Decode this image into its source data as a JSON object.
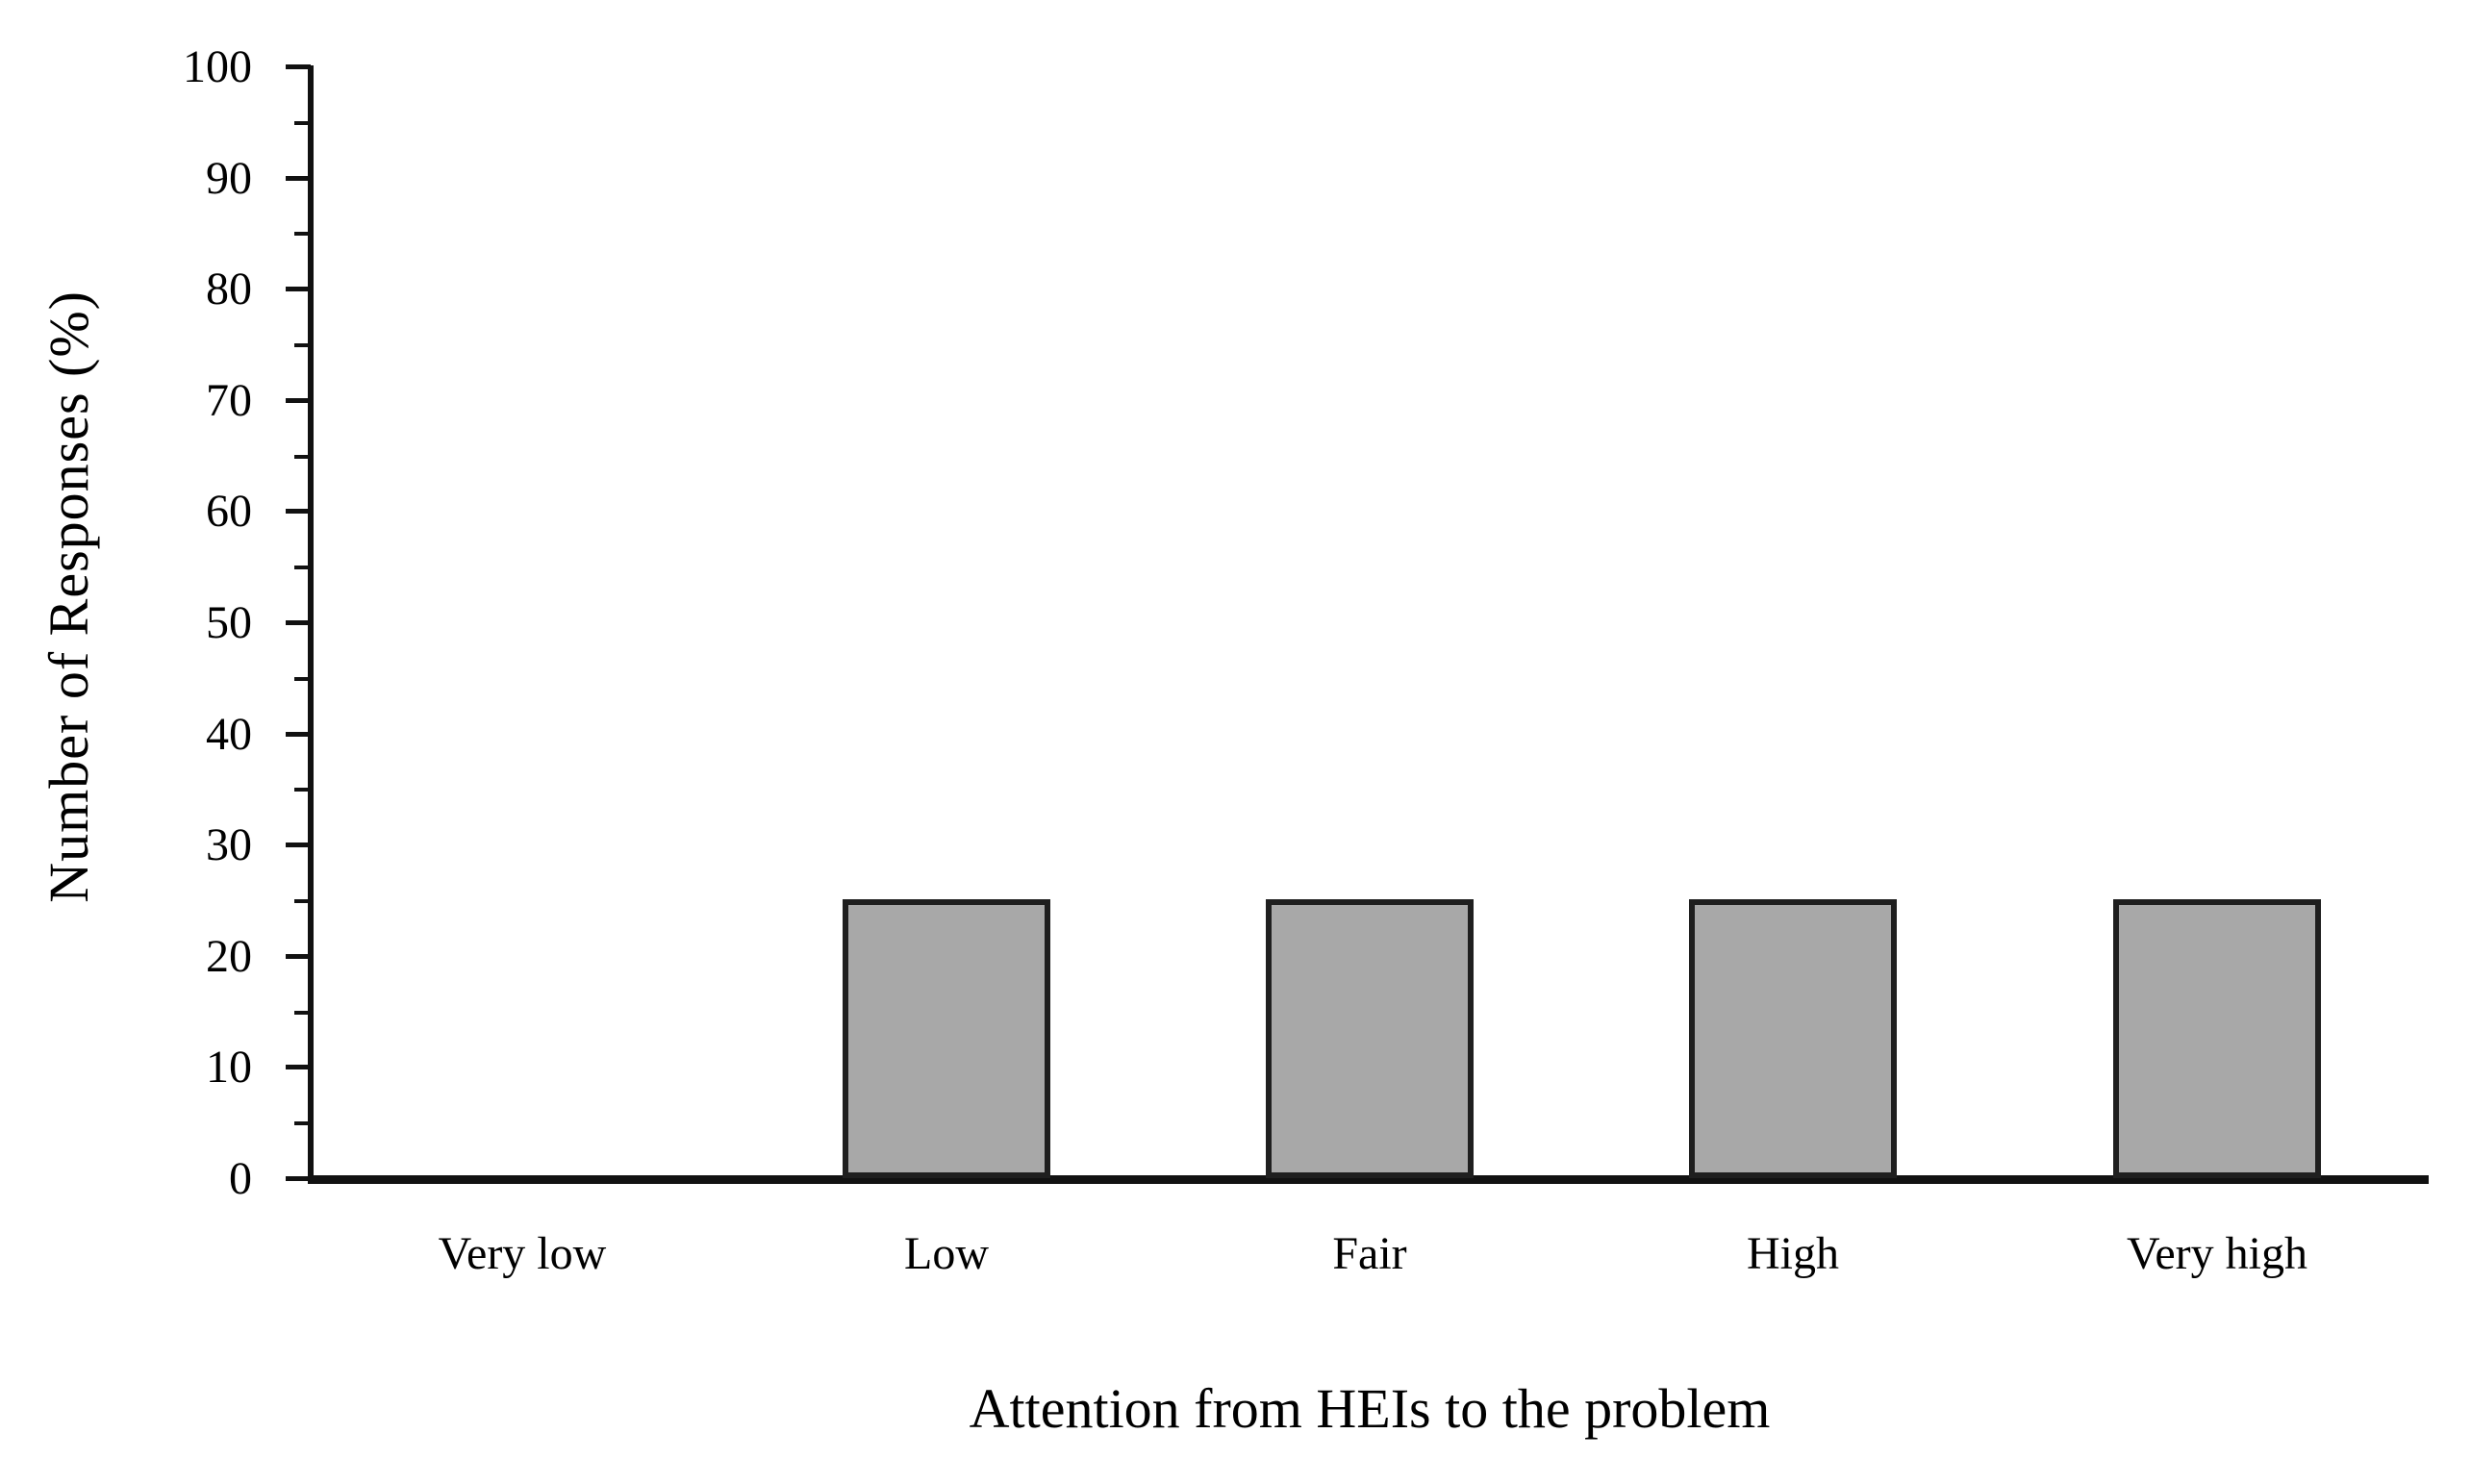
{
  "chart_data": {
    "type": "bar",
    "title": "",
    "categories": [
      "Very low",
      "Low",
      "Fair",
      "High",
      "Very high"
    ],
    "values": [
      0,
      25,
      25,
      25,
      25
    ],
    "series": [
      {
        "name": "Number of Responses (%)",
        "values": [
          0,
          25,
          25,
          25,
          25
        ]
      }
    ],
    "xlabel": "Attention from HEIs to the problem",
    "ylabel": "Number of Responses (%)",
    "ylim": [
      0,
      100
    ],
    "y_major_tick_step": 10,
    "y_minor_tick_step": 5,
    "y_tick_labels": [
      "0",
      "10",
      "20",
      "30",
      "40",
      "50",
      "60",
      "70",
      "80",
      "90",
      "100"
    ],
    "grid": "off",
    "legend": "none",
    "colors": {
      "bar_fill": "#a8a8a8",
      "bar_border": "#1f1f1f",
      "axis": "#111111",
      "text": "#000000",
      "background": "#ffffff"
    }
  }
}
